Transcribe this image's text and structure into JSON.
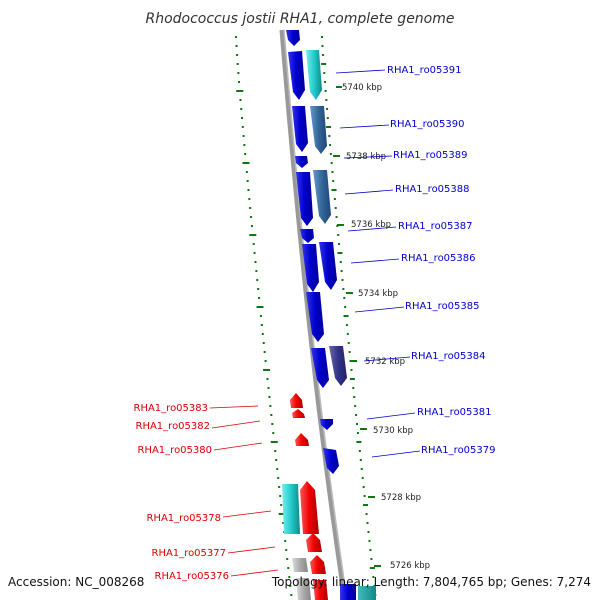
{
  "title": "Rhodococcus jostii RHA1, complete genome",
  "accession": "Accession: NC_008268",
  "summary": "Topology: linear; Length: 7,804,765 bp; Genes: 7,274",
  "colors": {
    "forward_gene": "#dd0000",
    "reverse_gene": "#0000cc",
    "backbone": "#888888",
    "gc_dots": "#117711"
  },
  "kbp_ticks": [
    "5740 kbp",
    "5738 kbp",
    "5736 kbp",
    "5734 kbp",
    "5732 kbp",
    "5730 kbp",
    "5728 kbp",
    "5726 kbp"
  ],
  "genes_reverse": [
    "RHA1_ro05391",
    "RHA1_ro05390",
    "RHA1_ro05389",
    "RHA1_ro05388",
    "RHA1_ro05387",
    "RHA1_ro05386",
    "RHA1_ro05385",
    "RHA1_ro05384",
    "RHA1_ro05381",
    "RHA1_ro05379"
  ],
  "genes_forward": [
    "RHA1_ro05383",
    "RHA1_ro05382",
    "RHA1_ro05380",
    "RHA1_ro05378",
    "RHA1_ro05377",
    "RHA1_ro05376"
  ]
}
